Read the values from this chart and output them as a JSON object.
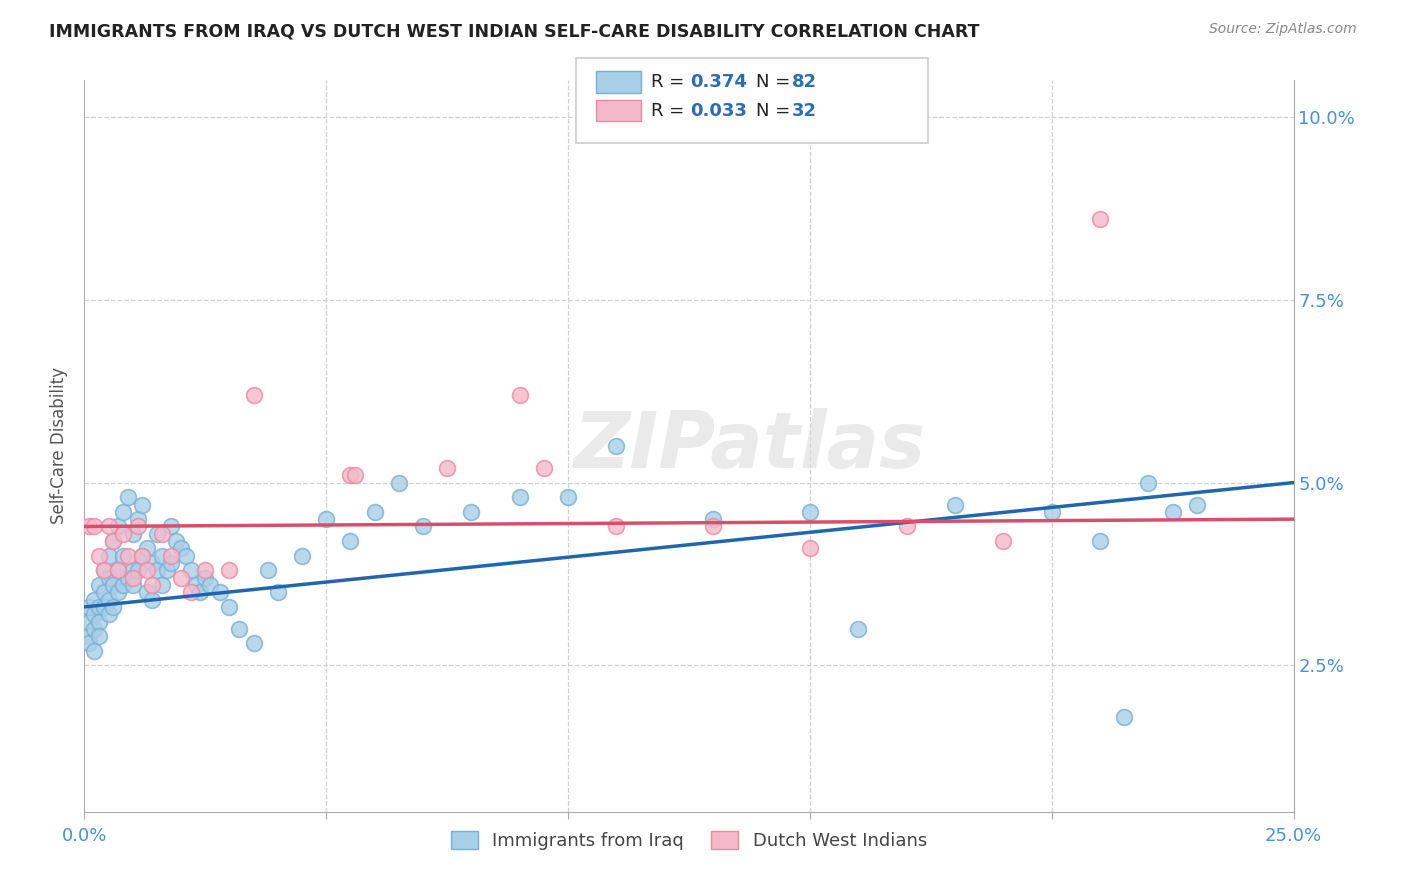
{
  "title": "IMMIGRANTS FROM IRAQ VS DUTCH WEST INDIAN SELF-CARE DISABILITY CORRELATION CHART",
  "source": "Source: ZipAtlas.com",
  "ylabel": "Self-Care Disability",
  "xlim": [
    0.0,
    0.25
  ],
  "ylim": [
    0.005,
    0.105
  ],
  "blue_color": "#a8cfe8",
  "blue_edge": "#7aafd4",
  "pink_color": "#f4b8cb",
  "pink_edge": "#e88aa4",
  "blue_line_color": "#2166ac",
  "pink_line_color": "#d94f6b",
  "legend_label_blue": "Immigrants from Iraq",
  "legend_label_pink": "Dutch West Indians",
  "watermark": "ZIPatlas",
  "x_ticks": [
    0.0,
    0.05,
    0.1,
    0.15,
    0.2,
    0.25
  ],
  "x_tick_labels": [
    "0.0%",
    "",
    "",
    "",
    "",
    "25.0%"
  ],
  "y_ticks": [
    0.025,
    0.05,
    0.075,
    0.1
  ],
  "y_tick_labels_right": [
    "2.5%",
    "5.0%",
    "7.5%",
    "10.0%"
  ],
  "blue_x": [
    0.001,
    0.001,
    0.001,
    0.001,
    0.002,
    0.002,
    0.002,
    0.002,
    0.003,
    0.003,
    0.003,
    0.003,
    0.004,
    0.004,
    0.004,
    0.005,
    0.005,
    0.005,
    0.005,
    0.006,
    0.006,
    0.006,
    0.007,
    0.007,
    0.007,
    0.008,
    0.008,
    0.008,
    0.009,
    0.009,
    0.01,
    0.01,
    0.01,
    0.011,
    0.011,
    0.012,
    0.012,
    0.013,
    0.013,
    0.014,
    0.014,
    0.015,
    0.015,
    0.016,
    0.016,
    0.017,
    0.018,
    0.018,
    0.019,
    0.02,
    0.021,
    0.022,
    0.023,
    0.024,
    0.025,
    0.026,
    0.028,
    0.03,
    0.032,
    0.035,
    0.038,
    0.04,
    0.045,
    0.05,
    0.055,
    0.06,
    0.065,
    0.07,
    0.08,
    0.09,
    0.1,
    0.11,
    0.13,
    0.15,
    0.16,
    0.18,
    0.2,
    0.21,
    0.215,
    0.22,
    0.225,
    0.23
  ],
  "blue_y": [
    0.031,
    0.029,
    0.033,
    0.028,
    0.034,
    0.03,
    0.032,
    0.027,
    0.036,
    0.033,
    0.031,
    0.029,
    0.038,
    0.035,
    0.033,
    0.04,
    0.037,
    0.034,
    0.032,
    0.042,
    0.036,
    0.033,
    0.044,
    0.038,
    0.035,
    0.046,
    0.04,
    0.036,
    0.048,
    0.037,
    0.043,
    0.038,
    0.036,
    0.045,
    0.038,
    0.047,
    0.04,
    0.041,
    0.035,
    0.039,
    0.034,
    0.043,
    0.038,
    0.04,
    0.036,
    0.038,
    0.044,
    0.039,
    0.042,
    0.041,
    0.04,
    0.038,
    0.036,
    0.035,
    0.037,
    0.036,
    0.035,
    0.033,
    0.03,
    0.028,
    0.038,
    0.035,
    0.04,
    0.045,
    0.042,
    0.046,
    0.05,
    0.044,
    0.046,
    0.048,
    0.048,
    0.055,
    0.045,
    0.046,
    0.03,
    0.047,
    0.046,
    0.042,
    0.018,
    0.05,
    0.046,
    0.047
  ],
  "pink_x": [
    0.001,
    0.002,
    0.003,
    0.004,
    0.005,
    0.006,
    0.007,
    0.008,
    0.009,
    0.01,
    0.011,
    0.012,
    0.013,
    0.014,
    0.016,
    0.018,
    0.02,
    0.022,
    0.025,
    0.03,
    0.035,
    0.055,
    0.056,
    0.075,
    0.09,
    0.095,
    0.11,
    0.13,
    0.15,
    0.17,
    0.19,
    0.21
  ],
  "pink_y": [
    0.044,
    0.044,
    0.04,
    0.038,
    0.044,
    0.042,
    0.038,
    0.043,
    0.04,
    0.037,
    0.044,
    0.04,
    0.038,
    0.036,
    0.043,
    0.04,
    0.037,
    0.035,
    0.038,
    0.038,
    0.062,
    0.051,
    0.051,
    0.052,
    0.062,
    0.052,
    0.044,
    0.044,
    0.041,
    0.044,
    0.042,
    0.086
  ],
  "blue_line_x0": 0.0,
  "blue_line_x1": 0.25,
  "blue_line_y0": 0.033,
  "blue_line_y1": 0.05,
  "pink_line_x0": 0.0,
  "pink_line_x1": 0.25,
  "pink_line_y0": 0.044,
  "pink_line_y1": 0.045
}
